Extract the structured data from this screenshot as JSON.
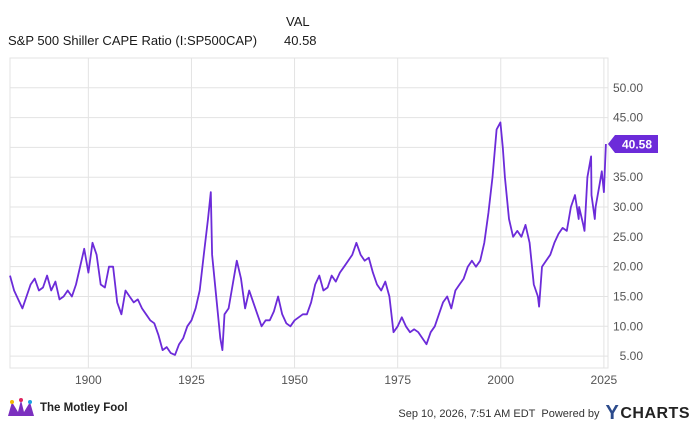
{
  "header": {
    "value_column_label": "VAL",
    "series_label": "S&P 500 Shiller CAPE Ratio (I:SP500CAP)",
    "series_value": "40.58"
  },
  "chart_data": {
    "type": "line",
    "title": "",
    "xlabel": "",
    "ylabel": "",
    "x_ticks": [
      "1900",
      "1925",
      "1950",
      "1975",
      "2000",
      "2025"
    ],
    "y_ticks": [
      "5.00",
      "10.00",
      "15.00",
      "20.00",
      "25.00",
      "30.00",
      "35.00",
      "40.00",
      "45.00",
      "50.00"
    ],
    "xlim": [
      1881,
      2026
    ],
    "ylim": [
      3,
      55
    ],
    "grid": true,
    "last_value_label": "40.58",
    "series": [
      {
        "color": "#6c2bd9",
        "x": [
          1881,
          1882,
          1883,
          1884,
          1885,
          1886,
          1887,
          1888,
          1889,
          1890,
          1891,
          1892,
          1893,
          1894,
          1895,
          1896,
          1897,
          1898,
          1899,
          1900,
          1901,
          1902,
          1903,
          1904,
          1905,
          1906,
          1907,
          1908,
          1909,
          1910,
          1911,
          1912,
          1913,
          1914,
          1915,
          1916,
          1917,
          1918,
          1919,
          1920,
          1921,
          1922,
          1923,
          1924,
          1925,
          1926,
          1927,
          1928,
          1929,
          1929.7,
          1930,
          1931,
          1932,
          1932.5,
          1933,
          1934,
          1935,
          1936,
          1937,
          1938,
          1939,
          1940,
          1941,
          1942,
          1943,
          1944,
          1945,
          1946,
          1947,
          1948,
          1949,
          1950,
          1951,
          1952,
          1953,
          1954,
          1955,
          1956,
          1957,
          1958,
          1959,
          1960,
          1961,
          1962,
          1963,
          1964,
          1965,
          1966,
          1967,
          1968,
          1969,
          1970,
          1971,
          1972,
          1973,
          1974,
          1975,
          1976,
          1977,
          1978,
          1979,
          1980,
          1981,
          1982,
          1983,
          1984,
          1985,
          1986,
          1987,
          1988,
          1989,
          1990,
          1991,
          1992,
          1993,
          1994,
          1995,
          1996,
          1997,
          1998,
          1999,
          1999.9,
          2000.5,
          2001,
          2002,
          2003,
          2004,
          2005,
          2006,
          2007,
          2008,
          2009,
          2009.3,
          2010,
          2011,
          2012,
          2013,
          2014,
          2015,
          2016,
          2017,
          2018,
          2018.9,
          2019,
          2020,
          2020.3,
          2021,
          2021.9,
          2022,
          2022.8,
          2023,
          2024,
          2024.5,
          2025,
          2025.5
        ],
        "values": [
          18.5,
          16,
          14.5,
          13,
          15,
          17,
          18,
          16,
          16.5,
          18.5,
          16,
          17.5,
          14.5,
          15,
          16,
          15,
          17,
          20,
          23,
          19,
          24,
          22,
          17,
          16.5,
          20,
          20,
          14,
          12,
          16,
          15,
          14,
          14.5,
          13,
          12,
          11,
          10.5,
          8.5,
          6,
          6.5,
          5.5,
          5.2,
          7,
          8,
          10,
          11,
          13,
          16,
          22,
          28,
          32.5,
          22,
          15,
          8,
          6,
          12,
          13,
          17,
          21,
          18,
          13,
          16,
          14,
          12,
          10,
          11,
          11,
          12.5,
          15,
          12,
          10.5,
          10,
          11,
          11.5,
          12,
          12,
          14,
          17,
          18.5,
          16,
          16.5,
          18.5,
          17.5,
          19,
          20,
          21,
          22,
          24,
          22,
          21,
          21.5,
          19,
          17,
          16,
          17.5,
          15,
          9,
          10,
          11.5,
          10,
          9,
          9.5,
          9,
          8,
          7,
          9,
          10,
          12,
          14,
          15,
          13,
          16,
          17,
          18,
          20,
          21,
          20,
          21,
          24,
          29,
          35,
          43,
          44.2,
          40,
          35,
          28,
          25,
          26,
          25,
          27,
          24,
          17,
          15,
          13.3,
          20,
          21,
          22,
          24,
          25.5,
          26.5,
          26,
          30,
          32,
          28,
          30,
          27,
          26,
          35,
          38.5,
          32,
          28,
          30,
          34,
          36,
          32.5,
          40.58
        ]
      }
    ]
  },
  "footer": {
    "brand": "The Motley Fool",
    "timestamp": "Sep 10, 2026, 7:51 AM EDT",
    "powered_by": "Powered by",
    "provider": "CHARTS"
  },
  "colors": {
    "line": "#6c2bd9",
    "grid": "#e3e3e3",
    "axis_text": "#555555",
    "badge": "#6c2bd9"
  }
}
